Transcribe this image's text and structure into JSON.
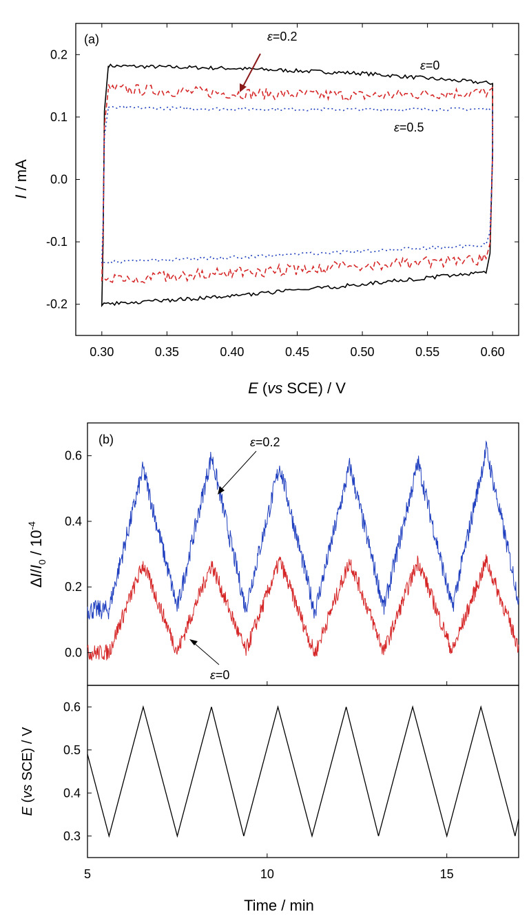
{
  "chart_data": [
    {
      "id": "a",
      "type": "line",
      "panel_label": "(a)",
      "xlabel": {
        "var": "E",
        "mid": " (",
        "ital": "vs",
        "rest": " SCE) / V"
      },
      "ylabel": {
        "var": "I",
        "rest": " / mA"
      },
      "xlim": [
        0.28,
        0.62
      ],
      "ylim": [
        -0.25,
        0.25
      ],
      "xticks": [
        "0.30",
        "0.35",
        "0.40",
        "0.45",
        "0.50",
        "0.55",
        "0.60"
      ],
      "yticks": [
        "-0.2",
        "-0.1",
        "0.0",
        "0.1",
        "0.2"
      ],
      "grid": false,
      "series": [
        {
          "eps": "0",
          "color": "#000000",
          "dash": "solid",
          "e_start": 0.3,
          "e_end": 0.6,
          "anodic": [
            [
              0.305,
              0.182
            ],
            [
              0.4,
              0.178
            ],
            [
              0.5,
              0.17
            ],
            [
              0.6,
              0.154
            ]
          ],
          "cathodic": [
            [
              0.3,
              -0.2
            ],
            [
              0.4,
              -0.187
            ],
            [
              0.5,
              -0.168
            ],
            [
              0.595,
              -0.148
            ]
          ]
        },
        {
          "eps": "0.2",
          "color": "#d62728",
          "dash": "dash",
          "e_start": 0.3,
          "e_end": 0.6,
          "anodic": [
            [
              0.305,
              0.145
            ],
            [
              0.4,
              0.138
            ],
            [
              0.5,
              0.134
            ],
            [
              0.6,
              0.14
            ]
          ],
          "cathodic": [
            [
              0.3,
              -0.16
            ],
            [
              0.4,
              -0.15
            ],
            [
              0.5,
              -0.138
            ],
            [
              0.595,
              -0.128
            ]
          ]
        },
        {
          "eps": "0.5",
          "color": "#1f3fbf",
          "dash": "dot",
          "e_start": 0.3,
          "e_end": 0.6,
          "anodic": [
            [
              0.305,
              0.115
            ],
            [
              0.4,
              0.113
            ],
            [
              0.5,
              0.112
            ],
            [
              0.6,
              0.113
            ]
          ],
          "cathodic": [
            [
              0.3,
              -0.133
            ],
            [
              0.4,
              -0.125
            ],
            [
              0.5,
              -0.115
            ],
            [
              0.595,
              -0.105
            ]
          ]
        }
      ],
      "annotations": [
        {
          "sym": "ε",
          "text": "=0.2"
        },
        {
          "sym": "ε",
          "text": "=0"
        },
        {
          "sym": "ε",
          "text": "=0.5"
        }
      ]
    },
    {
      "id": "b",
      "type": "line",
      "panel_label": "(b)",
      "ylabel": {
        "parts": [
          "Δ",
          "I",
          "/",
          "I",
          "0",
          " / 10",
          "-4"
        ]
      },
      "xlim": [
        5,
        17
      ],
      "ylim": [
        -0.1,
        0.7
      ],
      "yticks": [
        "0.0",
        "0.2",
        "0.4",
        "0.6"
      ],
      "grid": false,
      "period_min": 1.92,
      "series": [
        {
          "eps": "0.2",
          "color": "#1f3fbf",
          "min": 0.13,
          "max": 0.58,
          "noise": 0.03,
          "peaks_x": [
            6.55,
            8.45,
            10.35,
            12.3,
            14.2,
            16.1
          ],
          "peaks_y": [
            0.56,
            0.6,
            0.57,
            0.57,
            0.58,
            0.62
          ]
        },
        {
          "eps": "0",
          "color": "#d62728",
          "min": 0.0,
          "max": 0.27,
          "noise": 0.025,
          "peaks_x": [
            6.55,
            8.45,
            10.35,
            12.3,
            14.2,
            16.1
          ],
          "peaks_y": [
            0.27,
            0.27,
            0.28,
            0.28,
            0.28,
            0.28
          ]
        }
      ],
      "annotations": [
        {
          "sym": "ε",
          "text": "=0.2"
        },
        {
          "sym": "ε",
          "text": "=0"
        }
      ]
    },
    {
      "id": "c",
      "type": "line",
      "xlabel": "Time / min",
      "ylabel": {
        "var": "E",
        "mid": " (",
        "ital": "vs",
        "rest": " SCE) / V"
      },
      "xlim": [
        5,
        17
      ],
      "ylim": [
        0.25,
        0.65
      ],
      "xticks": [
        "5",
        "10",
        "15"
      ],
      "yticks": [
        "0.3",
        "0.4",
        "0.5",
        "0.6"
      ],
      "grid": false,
      "series": [
        {
          "color": "#000000",
          "x": [
            5.0,
            5.6,
            6.55,
            7.5,
            8.45,
            9.35,
            10.3,
            11.25,
            12.2,
            13.1,
            14.05,
            15.0,
            15.95,
            16.9,
            17.0
          ],
          "y": [
            0.49,
            0.3,
            0.6,
            0.3,
            0.6,
            0.3,
            0.6,
            0.3,
            0.6,
            0.3,
            0.6,
            0.3,
            0.6,
            0.3,
            0.34
          ]
        }
      ]
    }
  ]
}
